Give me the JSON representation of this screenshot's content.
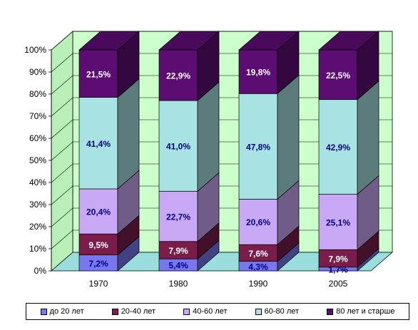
{
  "chart_data": {
    "type": "bar",
    "stacked": true,
    "percent": true,
    "three_d": true,
    "categories": [
      "1970",
      "1980",
      "1990",
      "2005"
    ],
    "series": [
      {
        "name": "до 20 лет",
        "color": "#7777ee",
        "labels": [
          "7,2%",
          "5,4%",
          "4,3%",
          "1,7%"
        ],
        "values": [
          7.2,
          5.4,
          4.3,
          1.7
        ]
      },
      {
        "name": "20-40 лет",
        "color": "#7a1d4a",
        "labels": [
          "9,5%",
          "7,9%",
          "7,6%",
          "7,9%"
        ],
        "values": [
          9.5,
          7.9,
          7.6,
          7.9
        ]
      },
      {
        "name": "40-60 лет",
        "color": "#c9a8f5",
        "labels": [
          "20,4%",
          "22,7%",
          "20,6%",
          "25,1%"
        ],
        "values": [
          20.4,
          22.7,
          20.6,
          25.1
        ]
      },
      {
        "name": "60-80 лет",
        "color": "#a8e2e2",
        "labels": [
          "41,4%",
          "41,0%",
          "47,8%",
          "42,9%"
        ],
        "values": [
          41.4,
          41.0,
          47.8,
          42.9
        ]
      },
      {
        "name": "80 лет и старше",
        "color": "#5c0d72",
        "labels": [
          "21,5%",
          "22,9%",
          "19,8%",
          "22,5%"
        ],
        "values": [
          21.5,
          22.9,
          19.8,
          22.5
        ]
      }
    ],
    "ylim": [
      0,
      100
    ],
    "yticks": [
      "0%",
      "10%",
      "20%",
      "30%",
      "40%",
      "50%",
      "60%",
      "70%",
      "80%",
      "90%",
      "100%"
    ],
    "grid": true,
    "legend_position": "bottom",
    "wall_color": "#ccffcc",
    "floor_color": "#99dddd"
  }
}
